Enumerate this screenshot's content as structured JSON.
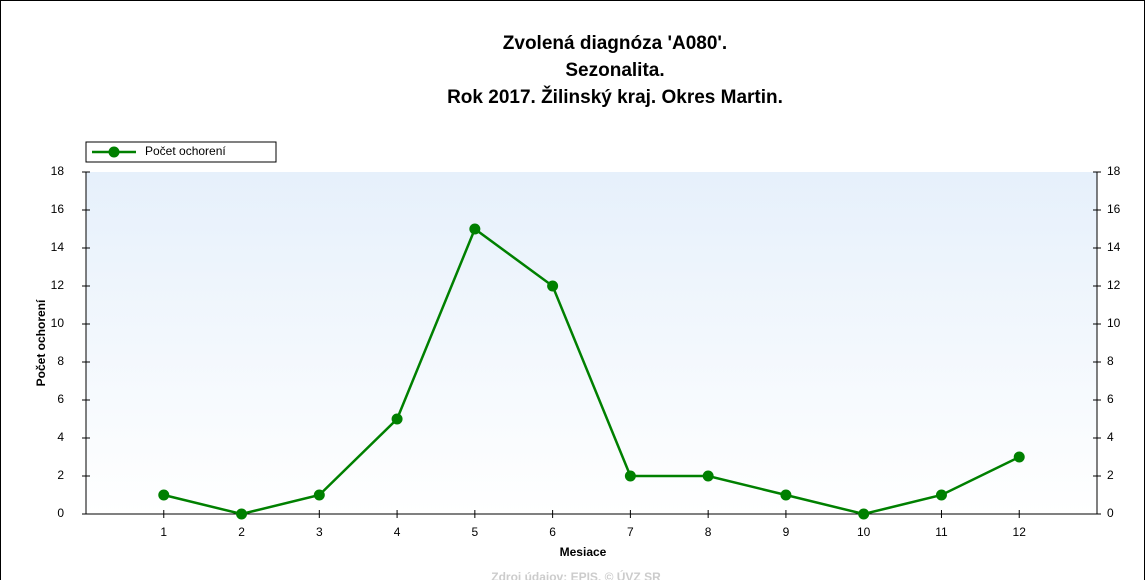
{
  "chart_data": {
    "type": "line",
    "title": [
      "Zvolená diagnóza 'A080'.",
      "Sezonalita.",
      "Rok 2017. Žilinský kraj. Okres Martin."
    ],
    "x_label": "Mesiace",
    "y_label": "Počet ochorení",
    "source": "Zdroj údajov: EPIS, © ÚVZ SR",
    "x": [
      1,
      2,
      3,
      4,
      5,
      6,
      7,
      8,
      9,
      10,
      11,
      12
    ],
    "xlim": [
      0,
      13
    ],
    "xticks": [
      1,
      2,
      3,
      4,
      5,
      6,
      7,
      8,
      9,
      10,
      11,
      12
    ],
    "ylim": [
      0,
      18
    ],
    "yticks": [
      0,
      2,
      4,
      6,
      8,
      10,
      12,
      14,
      16,
      18
    ],
    "y2lim": [
      0,
      18
    ],
    "y2ticks": [
      0,
      2,
      4,
      6,
      8,
      10,
      12,
      14,
      16,
      18
    ],
    "legend": "top-left",
    "series": [
      {
        "name": "Počet ochorení",
        "color": "#008000",
        "values": [
          1,
          0,
          1,
          5,
          15,
          12,
          2,
          2,
          1,
          0,
          1,
          3
        ]
      }
    ]
  }
}
